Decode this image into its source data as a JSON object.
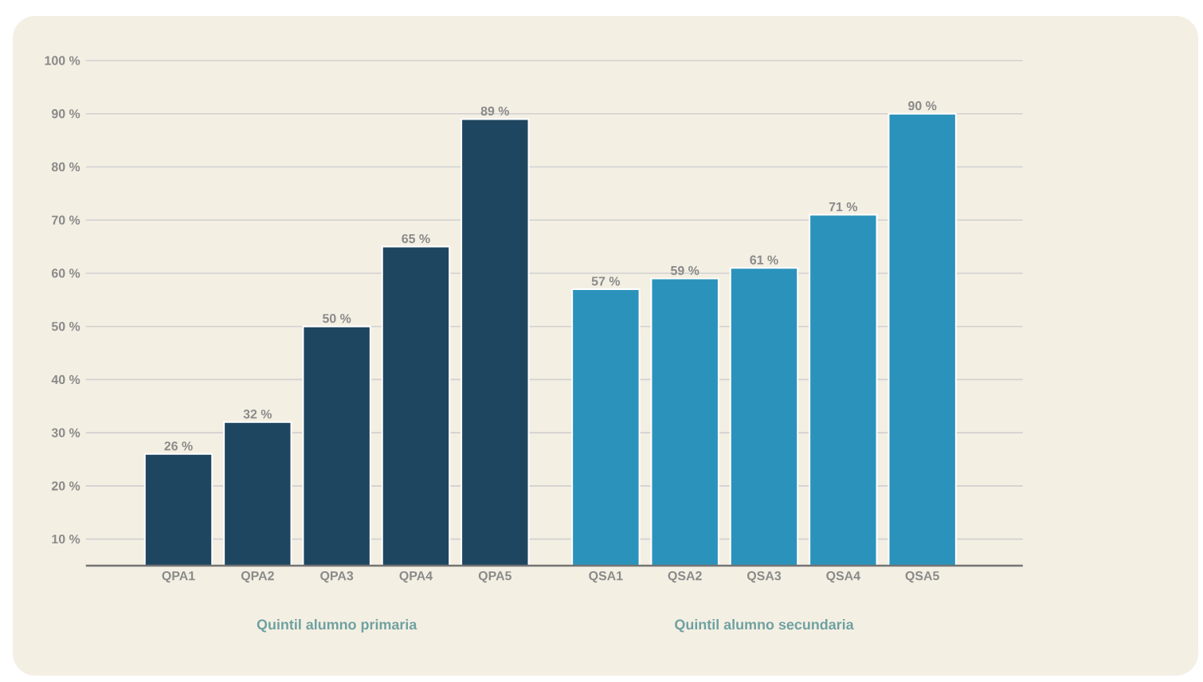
{
  "chart_data": {
    "type": "bar",
    "categories": [
      "QPA1",
      "QPA2",
      "QPA3",
      "QPA4",
      "QPA5",
      "QSA1",
      "QSA2",
      "QSA3",
      "QSA4",
      "QSA5"
    ],
    "series": [
      {
        "color": "#1f4660",
        "values": [
          26,
          32,
          50,
          65,
          89,
          null,
          null,
          null,
          null,
          null
        ],
        "value_labels": [
          "26 %",
          "32 %",
          "50 %",
          "65 %",
          "89 %",
          null,
          null,
          null,
          null,
          null
        ]
      },
      {
        "color": "#2b93bb",
        "values": [
          null,
          null,
          null,
          null,
          null,
          57,
          59,
          61,
          71,
          90
        ],
        "value_labels": [
          null,
          null,
          null,
          null,
          null,
          "57 %",
          "59 %",
          "61 %",
          "71 %",
          "90 %"
        ]
      }
    ],
    "ylim": [
      5,
      100
    ],
    "yticks": [
      {
        "value": 10,
        "label": "10 %"
      },
      {
        "value": 20,
        "label": "20 %"
      },
      {
        "value": 30,
        "label": "30 %"
      },
      {
        "value": 40,
        "label": "40 %"
      },
      {
        "value": 50,
        "label": "50 %"
      },
      {
        "value": 60,
        "label": "60 %"
      },
      {
        "value": 70,
        "label": "70 %"
      },
      {
        "value": 80,
        "label": "80 %"
      },
      {
        "value": 90,
        "label": "90 %"
      },
      {
        "value": 100,
        "label": "100 %"
      }
    ],
    "grid": "y",
    "annotations": [
      "Quintil alumno primaria",
      "Quintil alumno secundaria"
    ]
  }
}
